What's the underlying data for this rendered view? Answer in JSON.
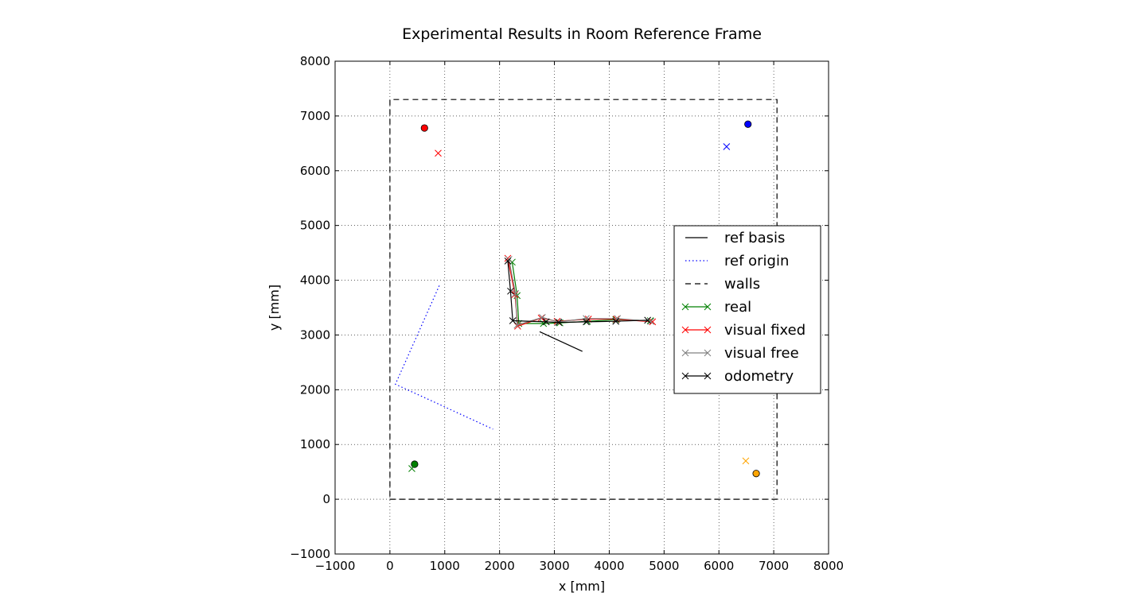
{
  "chart_data": {
    "type": "line",
    "title": "Experimental Results in Room Reference Frame",
    "xlabel": "x [mm]",
    "ylabel": "y [mm]",
    "xlim": [
      -1000,
      8000
    ],
    "ylim": [
      -1000,
      8000
    ],
    "xticks": [
      -1000,
      0,
      1000,
      2000,
      3000,
      4000,
      5000,
      6000,
      7000,
      8000
    ],
    "yticks": [
      -1000,
      0,
      1000,
      2000,
      3000,
      4000,
      5000,
      6000,
      7000,
      8000
    ],
    "xtick_labels": [
      "−1000",
      "0",
      "1000",
      "2000",
      "3000",
      "4000",
      "5000",
      "6000",
      "7000",
      "8000"
    ],
    "ytick_labels": [
      "−1000",
      "0",
      "1000",
      "2000",
      "3000",
      "4000",
      "5000",
      "6000",
      "7000",
      "8000"
    ],
    "grid": true,
    "legend_position": "center-right",
    "legend": [
      {
        "label": "ref basis",
        "style": "solid",
        "color": "#000000",
        "marker": ""
      },
      {
        "label": "ref origin",
        "style": "dotted",
        "color": "#0000ff",
        "marker": ""
      },
      {
        "label": "walls",
        "style": "dashed",
        "color": "#000000",
        "marker": ""
      },
      {
        "label": "real",
        "style": "solid",
        "color": "#008000",
        "marker": "x"
      },
      {
        "label": "visual fixed",
        "style": "solid",
        "color": "#ff0000",
        "marker": "x"
      },
      {
        "label": "visual free",
        "style": "solid",
        "color": "#808080",
        "marker": "x"
      },
      {
        "label": "odometry",
        "style": "solid",
        "color": "#000000",
        "marker": "x"
      }
    ],
    "series": [
      {
        "name": "ref basis",
        "style": "solid",
        "color": "#000000",
        "marker": "",
        "x": [
          2730,
          3510
        ],
        "y": [
          3060,
          2700
        ]
      },
      {
        "name": "ref origin",
        "style": "dotted",
        "color": "#0000ff",
        "marker": "",
        "x": [
          900,
          100,
          1880
        ],
        "y": [
          3900,
          2100,
          1280
        ]
      },
      {
        "name": "walls",
        "style": "dashed",
        "color": "#000000",
        "marker": "",
        "x": [
          0,
          7060,
          7060,
          0,
          0
        ],
        "y": [
          0,
          0,
          7300,
          7300,
          0
        ]
      },
      {
        "name": "real",
        "style": "solid",
        "color": "#008000",
        "marker": "x",
        "x": [
          2230,
          2320,
          2350,
          2800,
          3100,
          3600,
          4120,
          4750
        ],
        "y": [
          4330,
          3720,
          3210,
          3210,
          3220,
          3250,
          3280,
          3260
        ]
      },
      {
        "name": "visual fixed",
        "style": "solid",
        "color": "#ff0000",
        "marker": "x",
        "x": [
          2150,
          2280,
          2330,
          2760,
          3050,
          3620,
          4130,
          4790
        ],
        "y": [
          4400,
          3740,
          3160,
          3310,
          3250,
          3290,
          3290,
          3240
        ]
      },
      {
        "name": "visual free",
        "style": "solid",
        "color": "#808080",
        "marker": "x",
        "x": [
          2170,
          2290,
          2320,
          2780,
          3070,
          3580,
          4150,
          4760
        ],
        "y": [
          4380,
          3760,
          3180,
          3320,
          3240,
          3300,
          3300,
          3250
        ]
      },
      {
        "name": "odometry",
        "style": "solid",
        "color": "#000000",
        "marker": "x",
        "x": [
          2150,
          2200,
          2240,
          2850,
          3080,
          3580,
          4120,
          4700
        ],
        "y": [
          4350,
          3800,
          3260,
          3240,
          3230,
          3240,
          3250,
          3270
        ]
      }
    ],
    "landmarks_true": [
      {
        "x": 630,
        "y": 6780,
        "color": "#ff0000"
      },
      {
        "x": 6530,
        "y": 6850,
        "color": "#0000ff"
      },
      {
        "x": 450,
        "y": 640,
        "color": "#008000"
      },
      {
        "x": 6680,
        "y": 470,
        "color": "#ffa500"
      }
    ],
    "landmarks_estimated": [
      {
        "x": 880,
        "y": 6320,
        "color": "#ff0000"
      },
      {
        "x": 6140,
        "y": 6440,
        "color": "#0000ff"
      },
      {
        "x": 400,
        "y": 560,
        "color": "#008000"
      },
      {
        "x": 6490,
        "y": 700,
        "color": "#ffa500"
      }
    ]
  }
}
